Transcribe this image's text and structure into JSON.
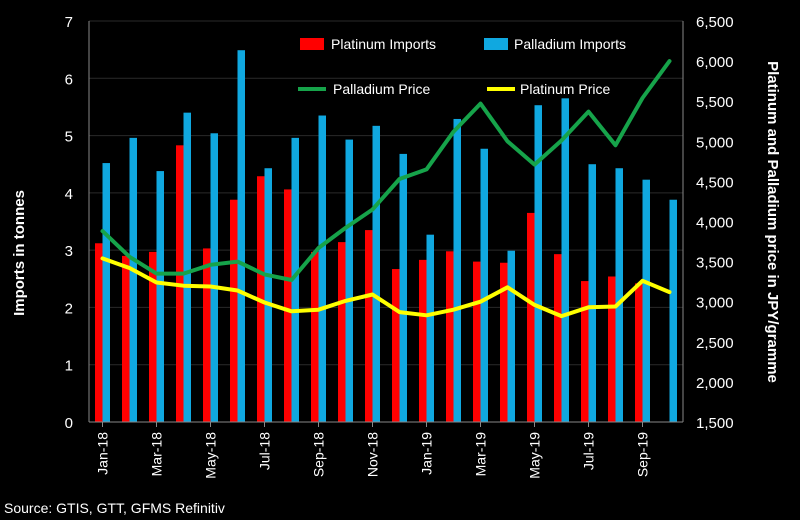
{
  "chart_data": {
    "type": "bar",
    "categories": [
      "Jan-18",
      "Feb-18",
      "Mar-18",
      "Apr-18",
      "May-18",
      "Jun-18",
      "Jul-18",
      "Aug-18",
      "Sep-18",
      "Oct-18",
      "Nov-18",
      "Dec-18",
      "Jan-19",
      "Feb-19",
      "Mar-19",
      "Apr-19",
      "May-19",
      "Jun-19",
      "Jul-19",
      "Aug-19",
      "Sep-19",
      "Oct-19"
    ],
    "tick_labels": [
      "Jan-18",
      "Mar-18",
      "May-18",
      "Jul-18",
      "Sep-18",
      "Nov-18",
      "Jan-19",
      "Mar-19",
      "May-19",
      "Jul-19",
      "Sep-19"
    ],
    "series": [
      {
        "name": "Platinum Imports",
        "type": "bar",
        "axis": "left",
        "color": "#ff0000",
        "values": [
          3.12,
          2.9,
          2.97,
          4.83,
          3.03,
          3.88,
          4.29,
          4.06,
          2.97,
          3.14,
          3.35,
          2.67,
          2.83,
          2.98,
          2.8,
          2.78,
          3.65,
          2.93,
          2.46,
          2.54,
          2.42,
          null
        ]
      },
      {
        "name": "Palladium Imports",
        "type": "bar",
        "axis": "left",
        "color": "#10a8e0",
        "values": [
          4.52,
          4.96,
          4.38,
          5.4,
          5.04,
          6.49,
          4.43,
          4.96,
          5.35,
          4.93,
          5.17,
          4.68,
          3.27,
          5.29,
          4.77,
          2.99,
          5.53,
          5.65,
          4.5,
          4.43,
          4.23,
          3.88
        ]
      },
      {
        "name": "Palladium Price",
        "type": "line",
        "axis": "right",
        "color": "#16a34a",
        "values": [
          3880,
          3560,
          3350,
          3350,
          3460,
          3500,
          3340,
          3270,
          3670,
          3920,
          4150,
          4530,
          4650,
          5120,
          5470,
          5000,
          4710,
          5010,
          5370,
          4950,
          5540,
          6000
        ]
      },
      {
        "name": "Platinum Price",
        "type": "line",
        "axis": "right",
        "color": "#ffff00",
        "values": [
          3540,
          3420,
          3240,
          3200,
          3190,
          3140,
          2990,
          2880,
          2900,
          3010,
          3090,
          2870,
          2830,
          2900,
          3000,
          3180,
          2960,
          2820,
          2930,
          2940,
          3260,
          3120
        ]
      }
    ],
    "title": "",
    "ylabel": "Imports in tonnes",
    "ylabel_right": "Platinum and Palladium price  in  JPY/gramme",
    "ylim": [
      0,
      7
    ],
    "yticks": [
      0,
      1,
      2,
      3,
      4,
      5,
      6,
      7
    ],
    "ylim_right": [
      1500,
      6500
    ],
    "yticks_right": [
      "1,500",
      "2,000",
      "2,500",
      "3,000",
      "3,500",
      "4,000",
      "4,500",
      "5,000",
      "5,500",
      "6,000",
      "6,500"
    ],
    "legend_position": "top-right",
    "source": "Source: GTIS, GTT, GFMS Refinitiv"
  }
}
